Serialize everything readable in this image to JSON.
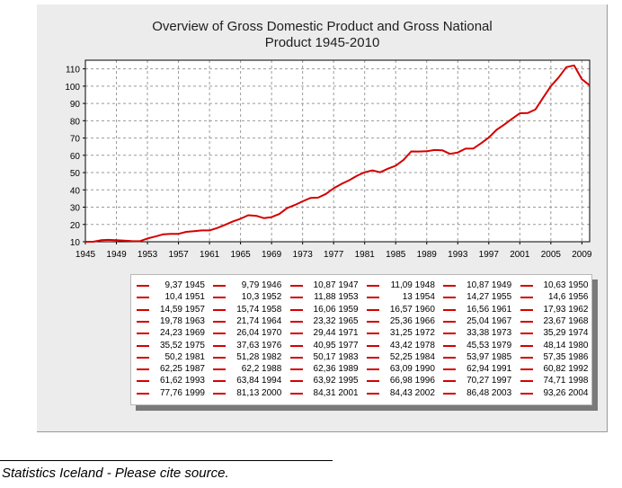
{
  "chart_data": {
    "type": "line",
    "title": "Overview of Gross Domestic Product and Gross National Product 1945-2010",
    "title_lines": [
      "Overview of Gross Domestic Product and Gross National",
      "Product 1945-2010"
    ],
    "xlim": [
      1945,
      2010
    ],
    "ylim": [
      10,
      115
    ],
    "x_ticks": [
      "1945",
      "1949",
      "1953",
      "1957",
      "1961",
      "1965",
      "1969",
      "1973",
      "1977",
      "1981",
      "1985",
      "1989",
      "1993",
      "1997",
      "2001",
      "2005",
      "2009"
    ],
    "y_ticks": [
      "10",
      "20",
      "30",
      "40",
      "50",
      "60",
      "70",
      "80",
      "90",
      "100",
      "110"
    ],
    "grid": true,
    "legend_position": "bottom",
    "color": "#d40000",
    "series": [
      {
        "x": [
          1945,
          1946,
          1947,
          1948,
          1949,
          1950,
          1951,
          1952,
          1953,
          1954,
          1955,
          1956,
          1957,
          1958,
          1959,
          1960,
          1961,
          1962,
          1963,
          1964,
          1965,
          1966,
          1967,
          1968,
          1969,
          1970,
          1971,
          1972,
          1973,
          1974,
          1975,
          1976,
          1977,
          1978,
          1979,
          1980,
          1981,
          1982,
          1983,
          1984,
          1985,
          1986,
          1987,
          1988,
          1989,
          1990,
          1991,
          1992,
          1993,
          1994,
          1995,
          1996,
          1997,
          1998,
          1999,
          2000,
          2001,
          2002,
          2003,
          2004,
          2005,
          2006,
          2007,
          2008,
          2009,
          2010
        ],
        "values": [
          9.37,
          9.79,
          10.87,
          11.09,
          10.87,
          10.63,
          10.4,
          10.3,
          11.88,
          13,
          14.27,
          14.6,
          14.59,
          15.74,
          16.06,
          16.57,
          16.56,
          17.93,
          19.78,
          21.74,
          23.32,
          25.36,
          25.04,
          23.67,
          24.23,
          26.04,
          29.44,
          31.25,
          33.38,
          35.29,
          35.52,
          37.63,
          40.95,
          43.42,
          45.53,
          48.14,
          50.2,
          51.28,
          50.17,
          52.25,
          53.97,
          57.35,
          62.25,
          62.2,
          62.36,
          63.09,
          62.94,
          60.82,
          61.62,
          63.84,
          63.92,
          66.98,
          70.27,
          74.71,
          77.76,
          81.13,
          84.31,
          84.43,
          86.48,
          93.26,
          100,
          105,
          111,
          112,
          104,
          100.5
        ]
      }
    ]
  },
  "legend_rows": [
    [
      "9,37 1945",
      "9,79 1946",
      "10,87 1947",
      "11,09 1948",
      "10,87 1949",
      "10,63 1950"
    ],
    [
      "10,4 1951",
      "10,3 1952",
      "11,88 1953",
      "13 1954",
      "14,27 1955",
      "14,6 1956"
    ],
    [
      "14,59 1957",
      "15,74 1958",
      "16,06 1959",
      "16,57 1960",
      "16,56 1961",
      "17,93 1962"
    ],
    [
      "19,78 1963",
      "21,74 1964",
      "23,32 1965",
      "25,36 1966",
      "25,04 1967",
      "23,67 1968"
    ],
    [
      "24,23 1969",
      "26,04 1970",
      "29,44 1971",
      "31,25 1972",
      "33,38 1973",
      "35,29 1974"
    ],
    [
      "35,52 1975",
      "37,63 1976",
      "40,95 1977",
      "43,42 1978",
      "45,53 1979",
      "48,14 1980"
    ],
    [
      "50,2 1981",
      "51,28 1982",
      "50,17 1983",
      "52,25 1984",
      "53,97 1985",
      "57,35 1986"
    ],
    [
      "62,25 1987",
      "62,2 1988",
      "62,36 1989",
      "63,09 1990",
      "62,94 1991",
      "60,82 1992"
    ],
    [
      "61,62 1993",
      "63,84 1994",
      "63,92 1995",
      "66,98 1996",
      "70,27 1997",
      "74,71 1998"
    ],
    [
      "77,76 1999",
      "81,13 2000",
      "84,31 2001",
      "84,43 2002",
      "86,48 2003",
      "93,26 2004"
    ]
  ],
  "source_note": "Statistics Iceland - Please cite source."
}
